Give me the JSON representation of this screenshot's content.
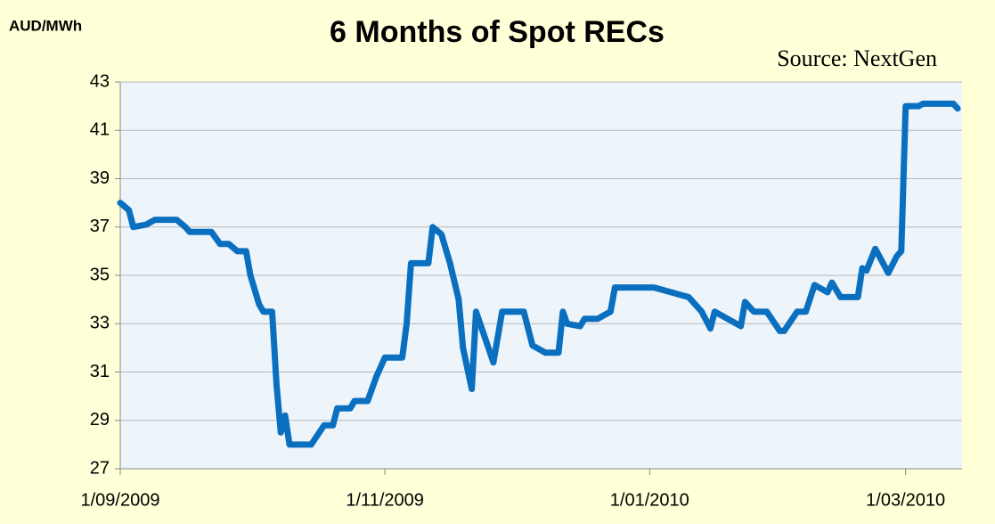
{
  "chart_data": {
    "type": "line",
    "title": "6 Months of Spot RECs",
    "y_label": "AUD/MWh",
    "annotation": "Source:  NextGen",
    "xlim": [
      "2009-09-01",
      "2010-03-14"
    ],
    "xticks": [
      {
        "value": "2009-09-01",
        "label": "1/09/2009"
      },
      {
        "value": "2009-11-01",
        "label": "1/11/2009"
      },
      {
        "value": "2010-01-01",
        "label": "1/01/2010"
      },
      {
        "value": "2010-03-01",
        "label": "1/03/2010"
      }
    ],
    "ylim": [
      27,
      43
    ],
    "yticks": [
      27,
      29,
      31,
      33,
      35,
      37,
      39,
      41,
      43
    ],
    "grid": true,
    "series": [
      {
        "name": "Spot RECs",
        "color": "#0b6fc0",
        "x": [
          "2009-09-01",
          "2009-09-03",
          "2009-09-04",
          "2009-09-07",
          "2009-09-09",
          "2009-09-14",
          "2009-09-16",
          "2009-09-17",
          "2009-09-22",
          "2009-09-24",
          "2009-09-26",
          "2009-09-28",
          "2009-09-30",
          "2009-10-01",
          "2009-10-03",
          "2009-10-04",
          "2009-10-06",
          "2009-10-07",
          "2009-10-08",
          "2009-10-09",
          "2009-10-10",
          "2009-10-15",
          "2009-10-18",
          "2009-10-20",
          "2009-10-21",
          "2009-10-24",
          "2009-10-25",
          "2009-10-28",
          "2009-10-30",
          "2009-11-01",
          "2009-11-05",
          "2009-11-06",
          "2009-11-07",
          "2009-11-11",
          "2009-11-12",
          "2009-11-14",
          "2009-11-16",
          "2009-11-18",
          "2009-11-19",
          "2009-11-21",
          "2009-11-22",
          "2009-11-26",
          "2009-11-28",
          "2009-12-03",
          "2009-12-05",
          "2009-12-08",
          "2009-12-11",
          "2009-12-12",
          "2009-12-13",
          "2009-12-16",
          "2009-12-17",
          "2009-12-20",
          "2009-12-23",
          "2009-12-24",
          "2010-01-02",
          "2010-01-06",
          "2010-01-10",
          "2010-01-13",
          "2010-01-15",
          "2010-01-16",
          "2010-01-20",
          "2010-01-22",
          "2010-01-23",
          "2010-01-25",
          "2010-01-28",
          "2010-01-31",
          "2010-02-01",
          "2010-02-04",
          "2010-02-06",
          "2010-02-08",
          "2010-02-11",
          "2010-02-12",
          "2010-02-14",
          "2010-02-18",
          "2010-02-19",
          "2010-02-20",
          "2010-02-22",
          "2010-02-25",
          "2010-02-27",
          "2010-02-28",
          "2010-03-01",
          "2010-03-04",
          "2010-03-05",
          "2010-03-12",
          "2010-03-13"
        ],
        "values": [
          38.0,
          37.7,
          37.0,
          37.1,
          37.3,
          37.3,
          37.0,
          36.8,
          36.8,
          36.3,
          36.3,
          36.0,
          36.0,
          35.0,
          33.8,
          33.5,
          33.5,
          30.5,
          28.5,
          29.2,
          28.0,
          28.0,
          28.8,
          28.8,
          29.5,
          29.5,
          29.8,
          29.8,
          30.8,
          31.6,
          31.6,
          33.0,
          35.5,
          35.5,
          37.0,
          36.7,
          35.5,
          34.0,
          32.0,
          30.3,
          33.5,
          31.4,
          33.5,
          33.5,
          32.1,
          31.8,
          31.8,
          33.5,
          33.0,
          32.9,
          33.2,
          33.2,
          33.5,
          34.5,
          34.5,
          34.3,
          34.1,
          33.5,
          32.8,
          33.5,
          33.1,
          32.9,
          33.9,
          33.5,
          33.5,
          32.7,
          32.7,
          33.5,
          33.5,
          34.6,
          34.3,
          34.7,
          34.1,
          34.1,
          35.3,
          35.2,
          36.1,
          35.1,
          35.8,
          36.0,
          42.0,
          42.0,
          42.1,
          42.1,
          41.9
        ]
      }
    ]
  }
}
